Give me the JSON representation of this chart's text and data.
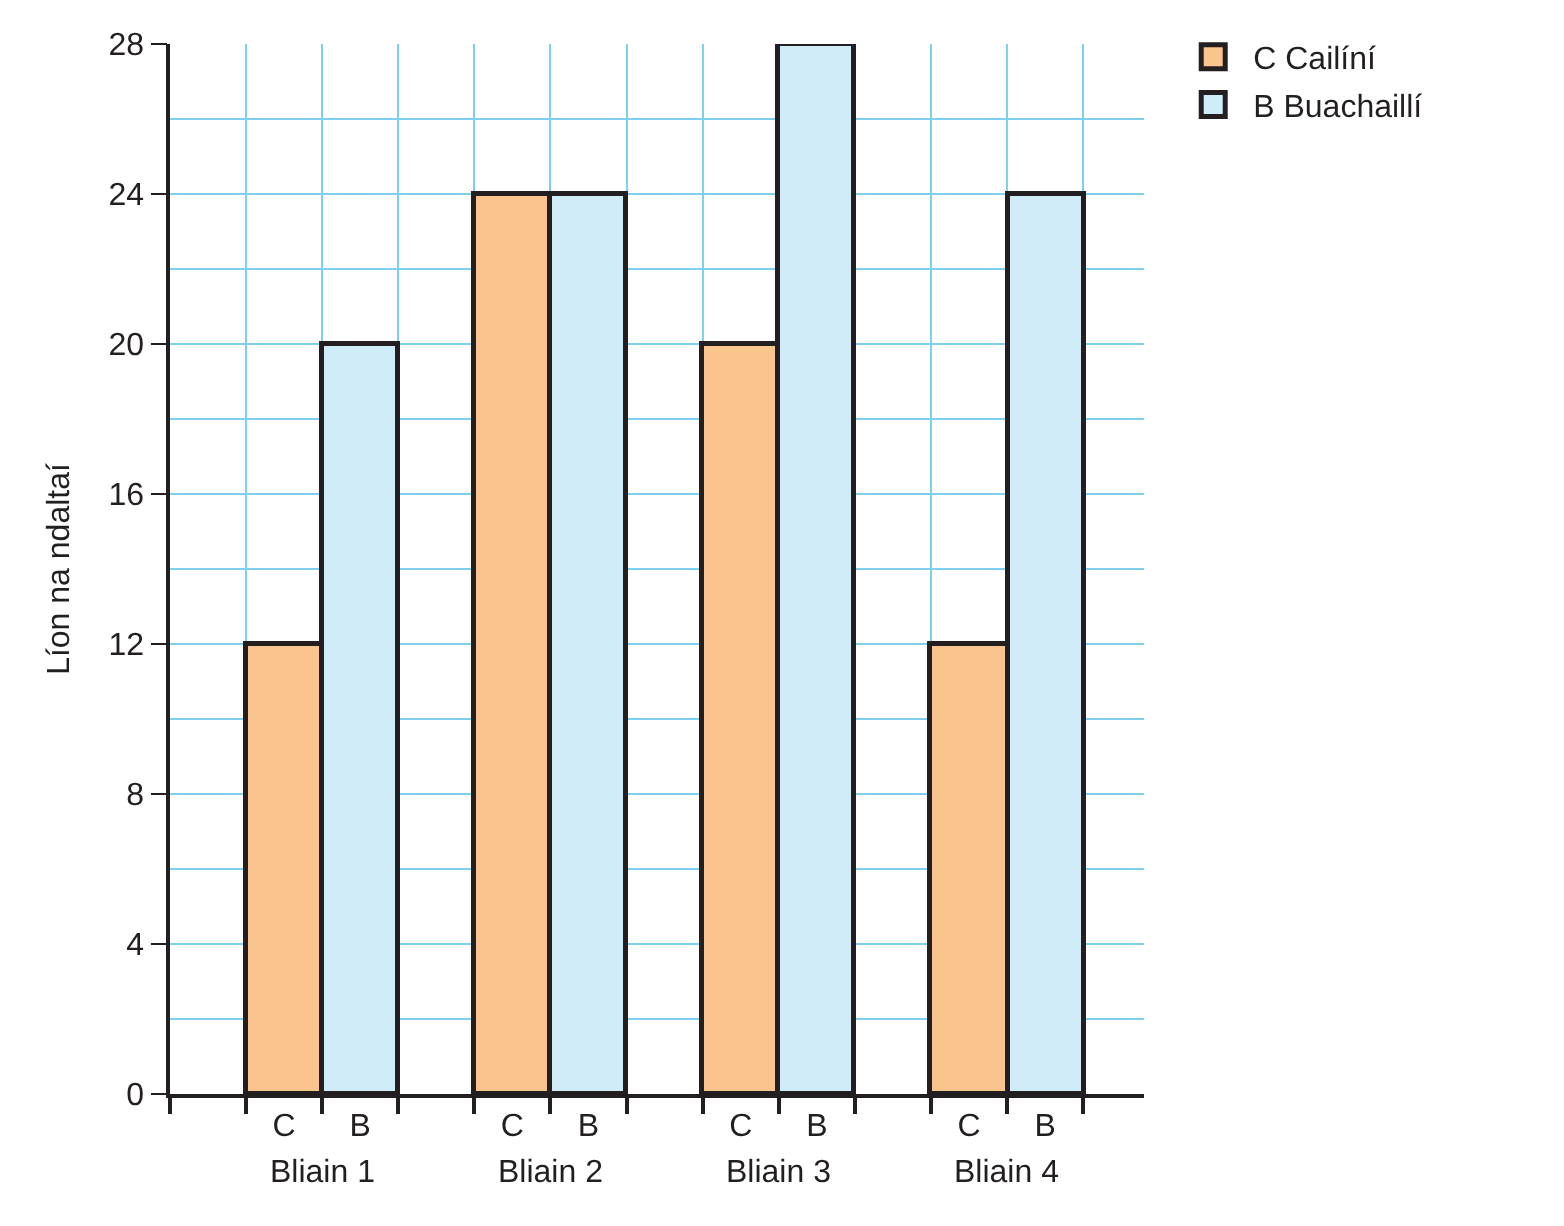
{
  "chart_data": {
    "type": "bar",
    "ylabel": "Líon na ndaltaí",
    "categories": [
      "Bliain 1",
      "Bliain 2",
      "Bliain 3",
      "Bliain 4"
    ],
    "series": [
      {
        "name": "C Cailíní",
        "color": "#f9c48e",
        "values": [
          12,
          24,
          20,
          12
        ]
      },
      {
        "name": "B Buachaillí",
        "color": "#d0ecf9",
        "values": [
          20,
          24,
          28,
          24
        ]
      }
    ],
    "annotations": [
      "C",
      "B",
      "C",
      "B",
      "C",
      "B",
      "C",
      "B"
    ],
    "ylim": [
      0,
      28
    ],
    "yticks": [
      0,
      4,
      8,
      12,
      16,
      20,
      24,
      28
    ],
    "grid": true,
    "legend": "top right"
  }
}
